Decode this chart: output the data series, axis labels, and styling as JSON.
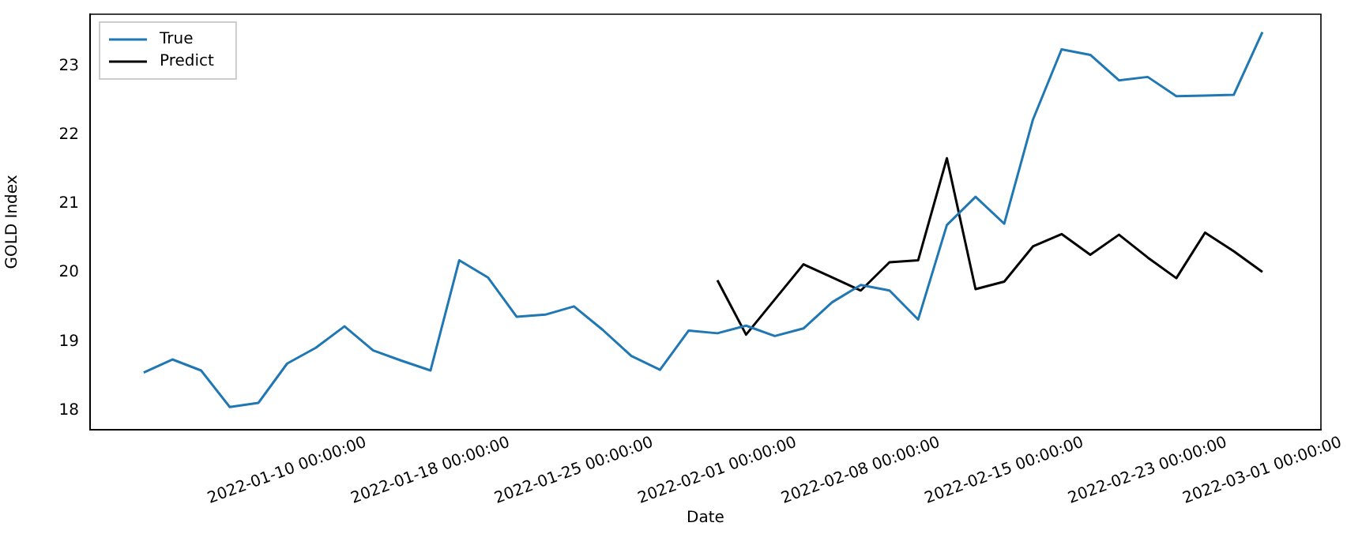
{
  "chart_data": {
    "type": "line",
    "xlabel": "Date",
    "ylabel": "GOLD Index",
    "categories": [
      null,
      null,
      null,
      null,
      null,
      "2022-01-10 00:00:00",
      null,
      null,
      null,
      null,
      "2022-01-18 00:00:00",
      null,
      null,
      null,
      null,
      "2022-01-25 00:00:00",
      null,
      null,
      null,
      null,
      "2022-02-01 00:00:00",
      null,
      null,
      null,
      null,
      "2022-02-08 00:00:00",
      null,
      null,
      null,
      null,
      "2022-02-15 00:00:00",
      null,
      null,
      null,
      null,
      "2022-02-23 00:00:00",
      null,
      null,
      null,
      "2022-03-01 00:00:00"
    ],
    "series": [
      {
        "name": "True",
        "color": "#1f77b4",
        "values": [
          18.55,
          18.74,
          18.58,
          18.05,
          18.11,
          18.68,
          18.91,
          19.22,
          18.87,
          18.72,
          18.58,
          20.18,
          19.93,
          19.36,
          19.39,
          19.51,
          19.17,
          18.79,
          18.59,
          19.16,
          19.12,
          19.23,
          19.08,
          19.19,
          19.57,
          19.82,
          19.74,
          19.32,
          20.69,
          21.1,
          20.71,
          22.22,
          23.24,
          23.16,
          22.79,
          22.84,
          22.56,
          22.57,
          22.58,
          23.49
        ]
      },
      {
        "name": "Predict",
        "color": "#000000",
        "values": [
          null,
          null,
          null,
          null,
          null,
          null,
          null,
          null,
          null,
          null,
          null,
          null,
          null,
          null,
          null,
          null,
          null,
          null,
          null,
          null,
          19.89,
          19.1,
          19.61,
          20.12,
          19.93,
          19.74,
          20.15,
          20.18,
          21.66,
          19.76,
          19.87,
          20.38,
          20.56,
          20.26,
          20.55,
          20.22,
          19.92,
          20.58,
          20.31,
          20.01
        ]
      }
    ],
    "ylim": [
      17.72,
      23.75
    ],
    "yticks": [
      18,
      19,
      20,
      21,
      22,
      23
    ],
    "grid": false,
    "legend": "top left",
    "marker": "none",
    "line_style": "solid"
  }
}
